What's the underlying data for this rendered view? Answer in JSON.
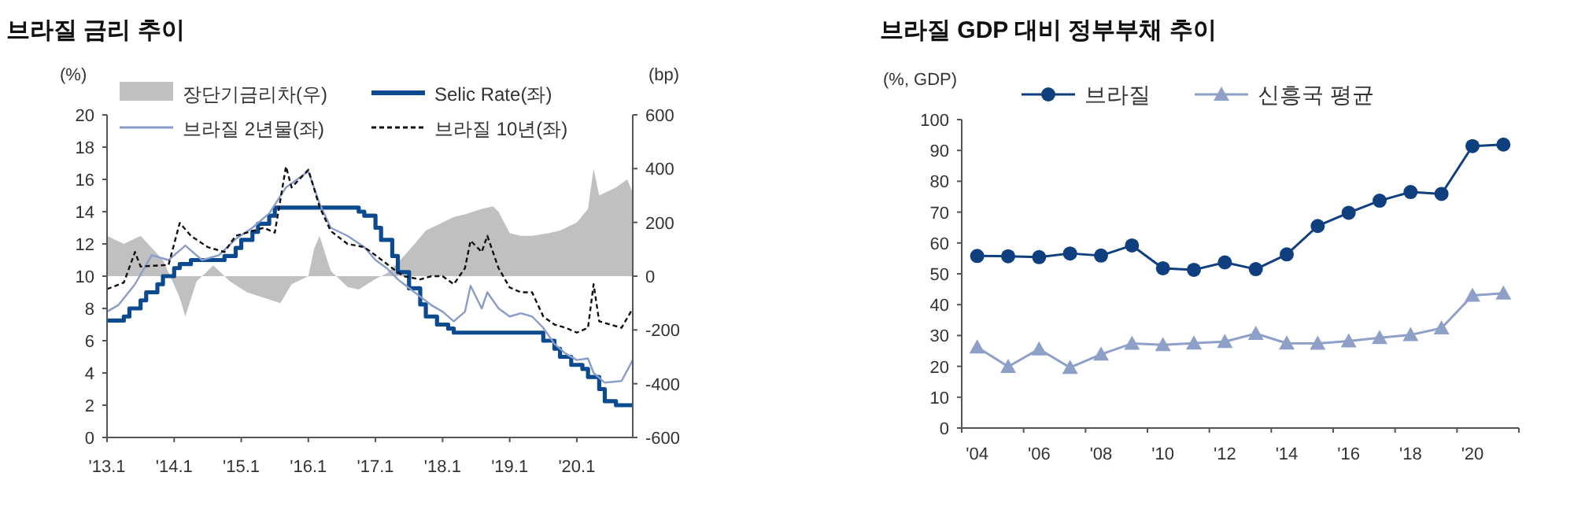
{
  "chart_data": [
    {
      "type": "line",
      "title": "브라질 금리 추이",
      "ylabel": "(%)",
      "y2label": "(bp)",
      "legend": "top",
      "xlim": [
        "2013-01",
        "2020-11"
      ],
      "xticks": [
        {
          "value": "2013-01",
          "label": "'13.1"
        },
        {
          "value": "2014-01",
          "label": "'14.1"
        },
        {
          "value": "2015-01",
          "label": "'15.1"
        },
        {
          "value": "2016-01",
          "label": "'16.1"
        },
        {
          "value": "2017-01",
          "label": "'17.1"
        },
        {
          "value": "2018-01",
          "label": "'18.1"
        },
        {
          "value": "2019-01",
          "label": "'19.1"
        },
        {
          "value": "2020-01",
          "label": "'20.1"
        }
      ],
      "ylim": [
        0,
        20
      ],
      "yticks": [
        0,
        2,
        4,
        6,
        8,
        10,
        12,
        14,
        16,
        18,
        20
      ],
      "y2lim": [
        -600,
        600
      ],
      "y2ticks": [
        -600,
        -400,
        -200,
        0,
        200,
        400,
        600
      ],
      "series": [
        {
          "name": "장단기금리차(우)",
          "type": "area",
          "axis": "y2",
          "color": "#c0c0c0",
          "x": [
            "2013-01",
            "2013-04",
            "2013-07",
            "2013-11",
            "2014-02",
            "2014-03",
            "2014-05",
            "2014-08",
            "2014-11",
            "2015-02",
            "2015-05",
            "2015-08",
            "2015-10",
            "2016-01",
            "2016-02",
            "2016-03",
            "2016-05",
            "2016-08",
            "2016-10",
            "2017-01",
            "2017-03",
            "2017-05",
            "2017-08",
            "2017-10",
            "2018-01",
            "2018-03",
            "2018-05",
            "2018-08",
            "2018-10",
            "2018-11",
            "2019-01",
            "2019-03",
            "2019-05",
            "2019-08",
            "2019-10",
            "2020-01",
            "2020-03",
            "2020-04",
            "2020-05",
            "2020-08",
            "2020-10",
            "2020-11"
          ],
          "values": [
            150,
            120,
            150,
            60,
            -80,
            -150,
            -20,
            40,
            -20,
            -60,
            -80,
            -100,
            -30,
            0,
            100,
            150,
            20,
            -40,
            -50,
            -10,
            10,
            50,
            120,
            170,
            200,
            220,
            230,
            250,
            260,
            240,
            160,
            150,
            150,
            160,
            170,
            200,
            250,
            400,
            300,
            330,
            360,
            310
          ]
        },
        {
          "name": "Selic Rate(좌)",
          "type": "step",
          "color": "#0b4a8f",
          "x": [
            "2013-01",
            "2013-04",
            "2013-05",
            "2013-07",
            "2013-08",
            "2013-10",
            "2013-11",
            "2014-01",
            "2014-02",
            "2014-04",
            "2014-10",
            "2014-12",
            "2015-01",
            "2015-03",
            "2015-04",
            "2015-06",
            "2015-07",
            "2016-10",
            "2016-11",
            "2017-01",
            "2017-02",
            "2017-04",
            "2017-05",
            "2017-07",
            "2017-09",
            "2017-10",
            "2017-12",
            "2018-02",
            "2018-03",
            "2019-07",
            "2019-09",
            "2019-10",
            "2019-12",
            "2020-02",
            "2020-03",
            "2020-05",
            "2020-06",
            "2020-08",
            "2020-11"
          ],
          "values": [
            7.25,
            7.5,
            8,
            8.5,
            9,
            9.5,
            10,
            10.5,
            10.75,
            11,
            11.25,
            11.75,
            12.25,
            12.75,
            13.25,
            13.75,
            14.25,
            14,
            13.75,
            13,
            12.25,
            11.25,
            10.25,
            9.25,
            8.25,
            7.5,
            7,
            6.75,
            6.5,
            6,
            5.5,
            5,
            4.5,
            4.25,
            3.75,
            3,
            2.25,
            2,
            2
          ]
        },
        {
          "name": "브라질 2년물(좌)",
          "type": "line",
          "color": "#8a9cc8",
          "x": [
            "2013-01",
            "2013-03",
            "2013-06",
            "2013-09",
            "2013-12",
            "2014-03",
            "2014-06",
            "2014-09",
            "2014-12",
            "2015-03",
            "2015-06",
            "2015-09",
            "2015-11",
            "2016-01",
            "2016-03",
            "2016-05",
            "2016-08",
            "2016-11",
            "2017-01",
            "2017-03",
            "2017-05",
            "2017-08",
            "2017-11",
            "2018-01",
            "2018-03",
            "2018-05",
            "2018-06",
            "2018-08",
            "2018-09",
            "2018-11",
            "2019-01",
            "2019-03",
            "2019-05",
            "2019-07",
            "2019-09",
            "2019-11",
            "2020-01",
            "2020-03",
            "2020-04",
            "2020-06",
            "2020-09",
            "2020-11"
          ],
          "values": [
            7.8,
            8.2,
            9.5,
            11.3,
            11,
            11.9,
            11,
            11.3,
            12.3,
            13,
            13.9,
            15.5,
            16,
            16.5,
            14.5,
            13,
            12.5,
            11.8,
            11,
            10.5,
            9.8,
            9,
            8.2,
            7.8,
            7.2,
            7.8,
            9.4,
            8,
            9,
            8,
            7.5,
            7.7,
            7.5,
            6.8,
            5.8,
            5.2,
            4.8,
            4.9,
            4,
            3.4,
            3.5,
            4.8
          ]
        },
        {
          "name": "브라질 10년(좌)",
          "type": "line",
          "line_style": "dashed",
          "color": "#111111",
          "x": [
            "2013-01",
            "2013-04",
            "2013-06",
            "2013-07",
            "2013-12",
            "2014-02",
            "2014-04",
            "2014-07",
            "2014-10",
            "2014-12",
            "2015-03",
            "2015-05",
            "2015-07",
            "2015-09",
            "2015-10",
            "2016-01",
            "2016-03",
            "2016-05",
            "2016-08",
            "2016-11",
            "2017-01",
            "2017-04",
            "2017-06",
            "2017-09",
            "2017-11",
            "2018-01",
            "2018-03",
            "2018-05",
            "2018-06",
            "2018-08",
            "2018-09",
            "2018-11",
            "2019-01",
            "2019-03",
            "2019-05",
            "2019-07",
            "2019-09",
            "2019-11",
            "2020-01",
            "2020-03",
            "2020-04",
            "2020-05",
            "2020-07",
            "2020-09",
            "2020-11"
          ],
          "values": [
            9.2,
            9.6,
            11.5,
            10.6,
            10.7,
            13.3,
            12.5,
            11.8,
            11.5,
            12.5,
            12.8,
            13,
            12.7,
            16.8,
            15.5,
            16.6,
            14.3,
            12.8,
            12,
            11.8,
            11.3,
            10.5,
            10,
            9.8,
            10,
            10,
            9.5,
            10.5,
            12.2,
            11.5,
            12.5,
            10.5,
            9.3,
            9,
            9,
            7.5,
            7,
            6.8,
            6.5,
            6.8,
            9.5,
            7.2,
            7,
            6.8,
            8
          ]
        }
      ]
    },
    {
      "type": "line",
      "title": "브라질 GDP 대비 정부부채 추이",
      "ylabel": "(%, GDP)",
      "legend": "top",
      "categories": [
        "'04",
        null,
        "'06",
        null,
        "'08",
        null,
        "'10",
        null,
        "'12",
        null,
        "'14",
        null,
        "'16",
        null,
        "'18",
        null,
        "'20",
        null
      ],
      "ylim": [
        0,
        100
      ],
      "yticks": [
        0,
        10,
        20,
        30,
        40,
        50,
        60,
        70,
        80,
        90,
        100
      ],
      "series": [
        {
          "name": "브라질",
          "color": "#0f3f7f",
          "marker": "circle",
          "values": [
            55.8,
            55.7,
            55.4,
            56.6,
            55.9,
            59.2,
            51.8,
            51.3,
            53.7,
            51.5,
            56.3,
            65.5,
            69.8,
            73.7,
            76.5,
            75.9,
            91.4,
            91.9
          ]
        },
        {
          "name": "신흥국 평균",
          "color": "#8fa0c8",
          "marker": "triangle",
          "values": [
            26.2,
            19.9,
            25.6,
            19.6,
            23.9,
            27.4,
            27,
            27.5,
            28,
            30.6,
            27.5,
            27.4,
            28.2,
            29.3,
            30.2,
            32.4,
            43,
            43.7
          ]
        }
      ]
    }
  ]
}
